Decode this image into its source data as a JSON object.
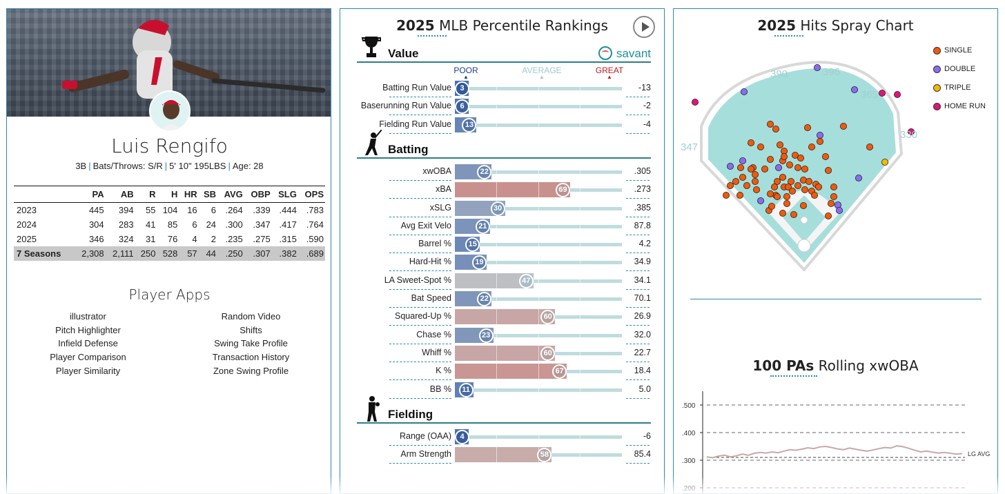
{
  "player": {
    "name": "Luis Rengifo",
    "position": "3B",
    "bats_throws": "Bats/Throws: S/R",
    "height_weight": "5' 10\" 195LBS",
    "age": "Age: 28",
    "sep": "|"
  },
  "stats": {
    "headers": [
      "",
      "PA",
      "AB",
      "R",
      "H",
      "HR",
      "SB",
      "AVG",
      "OBP",
      "SLG",
      "OPS"
    ],
    "rows": [
      [
        "2023",
        "445",
        "394",
        "55",
        "104",
        "16",
        "6",
        ".264",
        ".339",
        ".444",
        ".783"
      ],
      [
        "2024",
        "304",
        "283",
        "41",
        "85",
        "6",
        "24",
        ".300",
        ".347",
        ".417",
        ".764"
      ],
      [
        "2025",
        "346",
        "324",
        "31",
        "76",
        "4",
        "2",
        ".235",
        ".275",
        ".315",
        ".590"
      ]
    ],
    "total": [
      "7 Seasons",
      "2,308",
      "2,111",
      "250",
      "528",
      "57",
      "44",
      ".250",
      ".307",
      ".382",
      ".689"
    ]
  },
  "apps": {
    "title": "Player Apps",
    "left": [
      "illustrator",
      "Pitch Highlighter",
      "Infield Defense",
      "Player Comparison",
      "Player Similarity"
    ],
    "right": [
      "Random Video",
      "Shifts",
      "Swing Take Profile",
      "Transaction History",
      "Zone Swing Profile"
    ]
  },
  "percentile": {
    "title_year": "2025",
    "title_rest": " MLB Percentile Rankings",
    "savant_label": "savant",
    "scale": {
      "poor": "POOR",
      "average": "AVERAGE",
      "great": "GREAT"
    },
    "sections": [
      {
        "label": "Value",
        "icon": "trophy-icon",
        "rows": [
          {
            "name": "Batting Run Value",
            "pct": 3,
            "value": "-13"
          },
          {
            "name": "Baserunning Run Value",
            "pct": 6,
            "value": "-2"
          },
          {
            "name": "Fielding Run Value",
            "pct": 13,
            "value": "-4"
          }
        ]
      },
      {
        "label": "Batting",
        "icon": "batter-icon",
        "rows": [
          {
            "name": "xwOBA",
            "pct": 22,
            "value": ".305"
          },
          {
            "name": "xBA",
            "pct": 69,
            "value": ".273"
          },
          {
            "name": "xSLG",
            "pct": 30,
            "value": ".385"
          },
          {
            "name": "Avg Exit Velo",
            "pct": 21,
            "value": "87.8"
          },
          {
            "name": "Barrel %",
            "pct": 15,
            "value": "4.2"
          },
          {
            "name": "Hard-Hit %",
            "pct": 19,
            "value": "34.9"
          },
          {
            "name": "LA Sweet-Spot %",
            "pct": 47,
            "value": "34.1"
          },
          {
            "name": "Bat Speed",
            "pct": 22,
            "value": "70.1"
          },
          {
            "name": "Squared-Up %",
            "pct": 60,
            "value": "26.9"
          },
          {
            "name": "Chase %",
            "pct": 23,
            "value": "32.0"
          },
          {
            "name": "Whiff %",
            "pct": 60,
            "value": "22.7"
          },
          {
            "name": "K %",
            "pct": 67,
            "value": "18.4"
          },
          {
            "name": "BB %",
            "pct": 11,
            "value": "5.0"
          }
        ]
      },
      {
        "label": "Fielding",
        "icon": "fielder-icon",
        "rows": [
          {
            "name": "Range (OAA)",
            "pct": 4,
            "value": "-6"
          },
          {
            "name": "Arm Strength",
            "pct": 58,
            "value": "85.4"
          }
        ]
      }
    ]
  },
  "spray": {
    "title_year": "2025",
    "title_rest": " Hits Spray Chart",
    "legend": [
      {
        "label": "SINGLE",
        "color": "#f05a0a"
      },
      {
        "label": "DOUBLE",
        "color": "#8a6cf0"
      },
      {
        "label": "TRIPLE",
        "color": "#f5b800"
      },
      {
        "label": "HOME RUN",
        "color": "#e0157a"
      }
    ],
    "fences": {
      "lf_line": "347",
      "lcf": "390",
      "cf": "396",
      "rcf": "365",
      "rf_line": "330"
    }
  },
  "rolling": {
    "title_bold": "100 PAs",
    "title_rest": " Rolling xwOBA",
    "y_ticks": [
      ".500",
      ".400",
      ".300",
      ".200"
    ],
    "lg_avg_label": "LG AVG",
    "lg_avg": 0.31
  },
  "colors": {
    "accent": "#2b8aa8",
    "poor": "#3a67b0",
    "average": "#c4c4c4",
    "great": "#d0504a"
  }
}
